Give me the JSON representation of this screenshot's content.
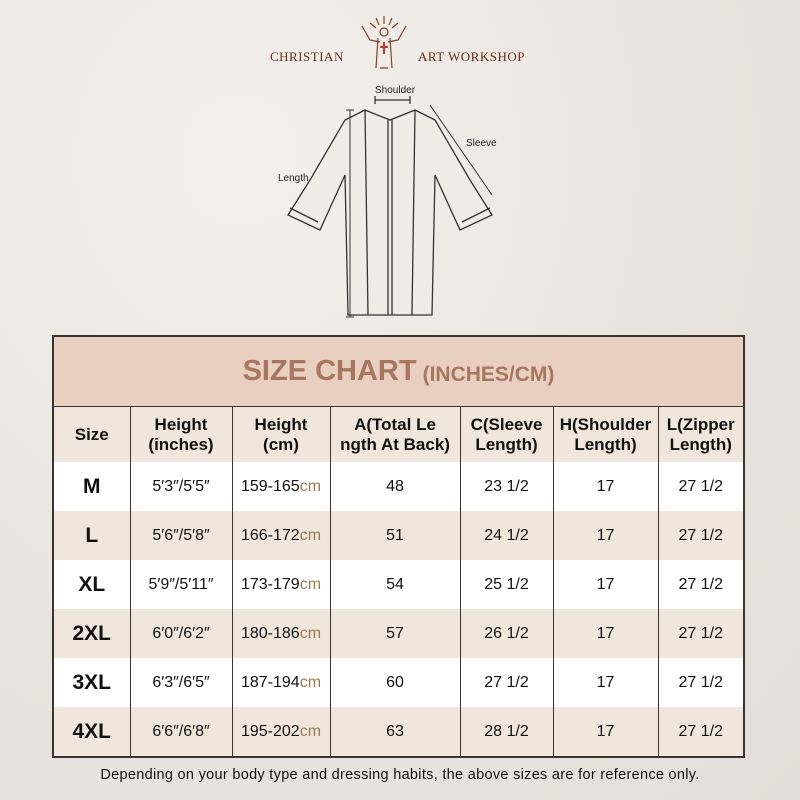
{
  "brand": {
    "left": "CHRISTIAN",
    "right": "ART WORKSHOP"
  },
  "diagram": {
    "shoulder": "Shoulder",
    "sleeve": "Sleeve",
    "length": "Length"
  },
  "chart": {
    "title": "SIZE CHART",
    "unit": "(INCHES/CM)",
    "headers": [
      [
        "Size"
      ],
      [
        "Height",
        "(inches)"
      ],
      [
        "Height",
        "(cm)"
      ],
      [
        "A(Total Le",
        "ngth At Back)"
      ],
      [
        "C(Sleeve",
        "Length)"
      ],
      [
        "H(Shoulder",
        "Length)"
      ],
      [
        "L(Zipper",
        "Length)"
      ]
    ],
    "rows": [
      {
        "size": "M",
        "in": "5′3″/5′5″",
        "cm": "159-165",
        "cm_unit": "cm",
        "a": "48",
        "c": "23 1/2",
        "h": "17",
        "l": "27 1/2"
      },
      {
        "size": "L",
        "in": "5′6″/5′8″",
        "cm": "166-172",
        "cm_unit": "cm",
        "a": "51",
        "c": "24 1/2",
        "h": "17",
        "l": "27 1/2"
      },
      {
        "size": "XL",
        "in": "5′9″/5′11″",
        "cm": "173-179",
        "cm_unit": "cm",
        "a": "54",
        "c": "25 1/2",
        "h": "17",
        "l": "27 1/2"
      },
      {
        "size": "2XL",
        "in": "6′0″/6′2″",
        "cm": "180-186",
        "cm_unit": "cm",
        "a": "57",
        "c": "26 1/2",
        "h": "17",
        "l": "27 1/2"
      },
      {
        "size": "3XL",
        "in": "6′3″/6′5″",
        "cm": "187-194",
        "cm_unit": "cm",
        "a": "60",
        "c": "27 1/2",
        "h": "17",
        "l": "27 1/2"
      },
      {
        "size": "4XL",
        "in": "6′6″/6′8″",
        "cm": "195-202",
        "cm_unit": "cm",
        "a": "63",
        "c": "28 1/2",
        "h": "17",
        "l": "27 1/2"
      }
    ]
  },
  "footnote": "Depending on your body type and dressing habits, the above sizes are for reference only."
}
